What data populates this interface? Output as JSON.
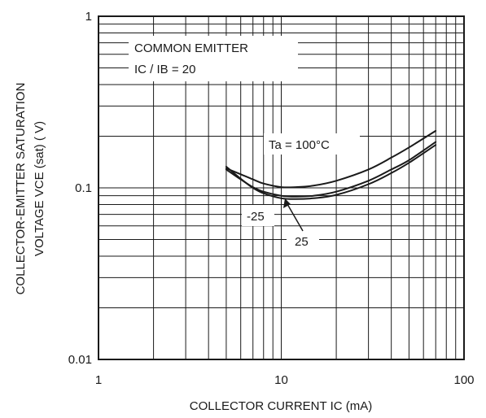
{
  "chart_data": {
    "type": "line",
    "xscale": "log",
    "yscale": "log",
    "xlim": [
      1,
      100
    ],
    "ylim": [
      0.01,
      1
    ],
    "grid": true,
    "xlabel": "COLLECTOR CURRENT   IC (mA)",
    "ylabel_lines": [
      "COLLECTOR-EMITTER SATURATION",
      "VOLTAGE  VCE (sat) ( V)"
    ],
    "x_ticks": [
      {
        "value": 1,
        "label": "1"
      },
      {
        "value": 10,
        "label": "10"
      },
      {
        "value": 100,
        "label": "100"
      }
    ],
    "y_ticks": [
      {
        "value": 0.01,
        "label": "0.01"
      },
      {
        "value": 0.1,
        "label": "0.1"
      },
      {
        "value": 1,
        "label": "1"
      }
    ],
    "annotations": {
      "condition_1": "COMMON EMITTER",
      "condition_2": "IC / IB = 20"
    },
    "series": [
      {
        "name": "Ta = 100°C",
        "x": [
          5,
          6,
          7,
          8,
          10,
          12,
          15,
          20,
          30,
          40,
          50,
          70
        ],
        "y": [
          0.13,
          0.12,
          0.112,
          0.106,
          0.101,
          0.101,
          0.103,
          0.11,
          0.128,
          0.15,
          0.172,
          0.215
        ]
      },
      {
        "name": "25",
        "x": [
          5,
          6,
          7,
          8,
          10,
          12,
          15,
          20,
          30,
          40,
          50,
          70
        ],
        "y": [
          0.128,
          0.112,
          0.101,
          0.095,
          0.09,
          0.089,
          0.09,
          0.095,
          0.11,
          0.128,
          0.145,
          0.185
        ]
      },
      {
        "name": "-25",
        "x": [
          5,
          6,
          7,
          8,
          10,
          12,
          15,
          20,
          30,
          40,
          50,
          70
        ],
        "y": [
          0.133,
          0.113,
          0.1,
          0.093,
          0.087,
          0.086,
          0.087,
          0.091,
          0.105,
          0.122,
          0.14,
          0.178
        ]
      }
    ]
  }
}
